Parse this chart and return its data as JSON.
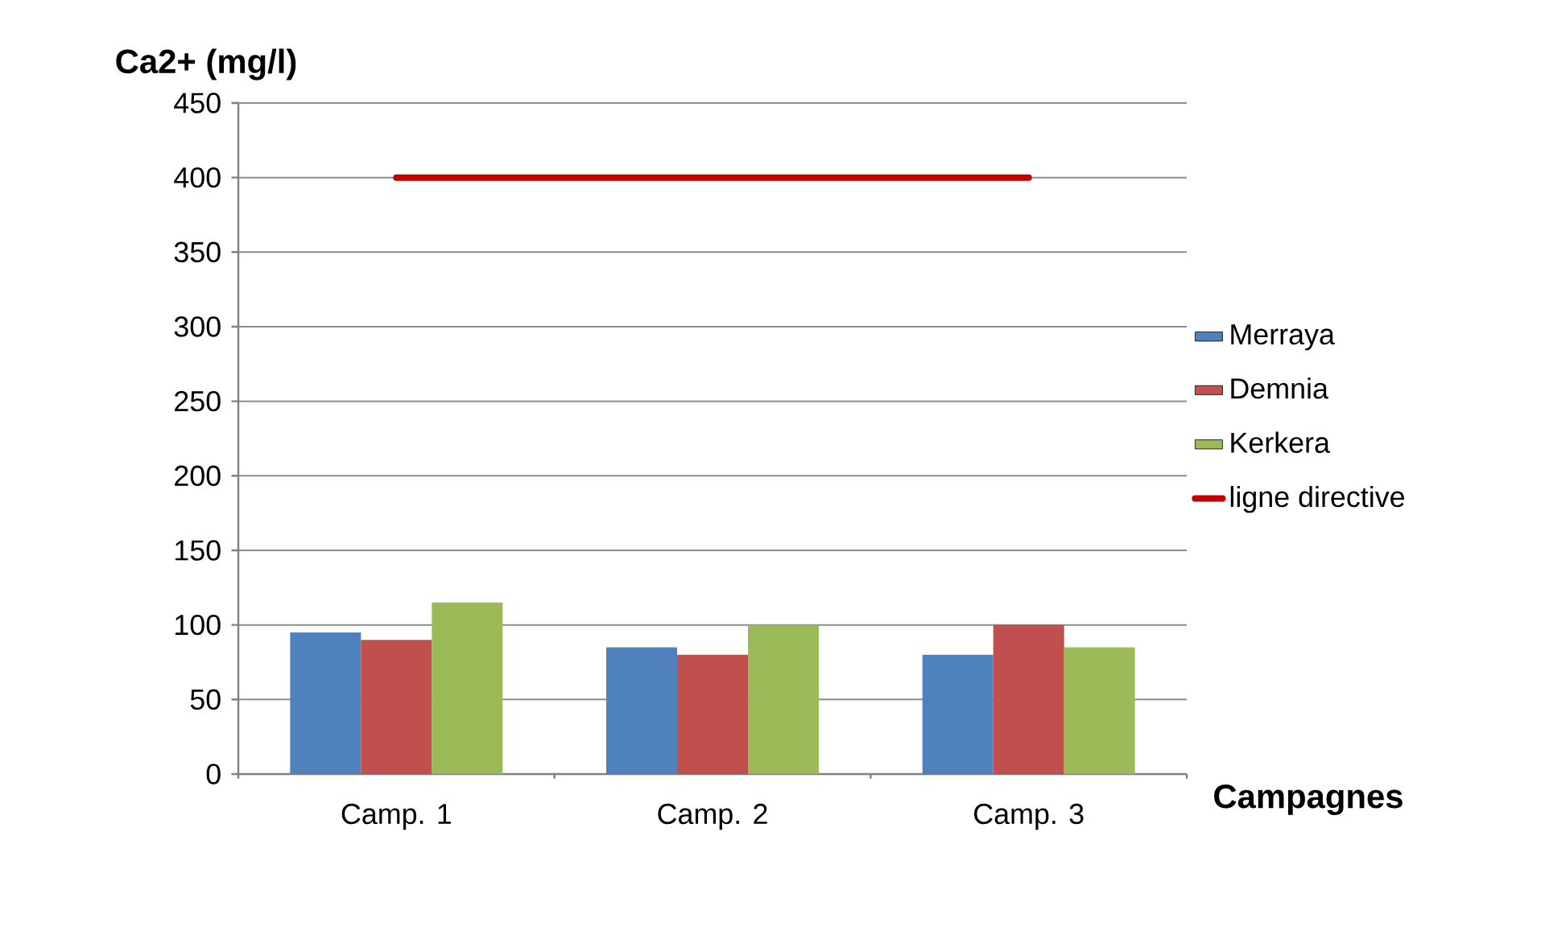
{
  "chart_data": {
    "type": "bar",
    "ylabel": "Ca2+ (mg/l)",
    "xlabel": "Campagnes",
    "categories": [
      "Camp. 1",
      "Camp. 2",
      "Camp. 3"
    ],
    "series": [
      {
        "name": "Merraya",
        "color": "#4f81bd",
        "values": [
          95,
          85,
          80
        ]
      },
      {
        "name": "Demnia",
        "color": "#c0504d",
        "values": [
          90,
          80,
          100
        ]
      },
      {
        "name": "Kerkera",
        "color": "#9bbb59",
        "values": [
          115,
          100,
          85
        ]
      },
      {
        "name": "ligne directive",
        "type": "line",
        "color": "#c00000",
        "values": [
          400,
          400,
          400
        ]
      }
    ],
    "ylim": [
      0,
      450
    ],
    "yticks": [
      0,
      50,
      100,
      150,
      200,
      250,
      300,
      350,
      400,
      450
    ],
    "grid": "y",
    "legend": "right"
  }
}
